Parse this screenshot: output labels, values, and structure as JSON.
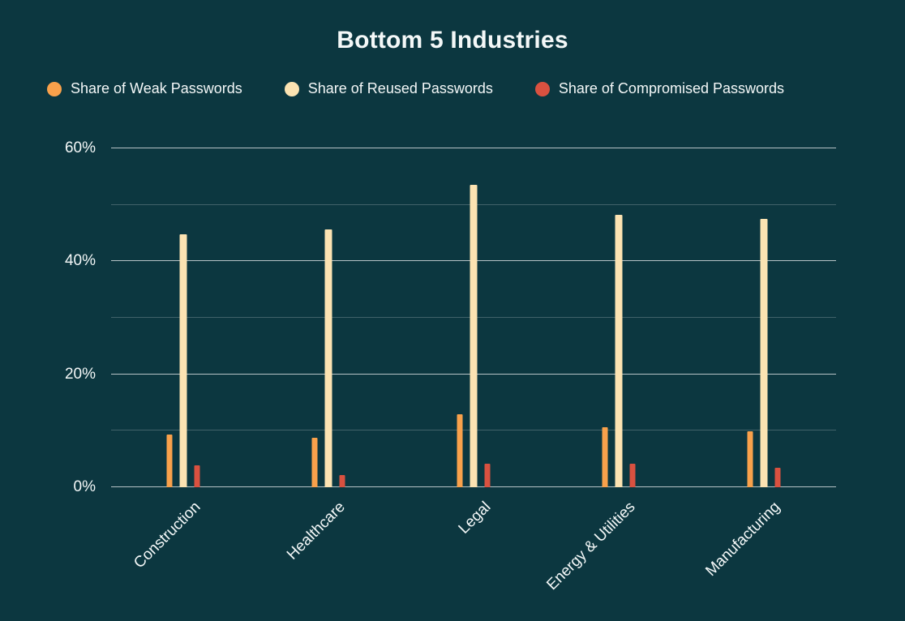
{
  "colors": {
    "background": "#0C3740",
    "text": "#F4F8F8",
    "grid_major": "rgba(255,255,255,0.70)",
    "grid_minor": "rgba(255,255,255,0.22)"
  },
  "chart_data": {
    "type": "bar",
    "title": "Bottom 5 Industries",
    "categories": [
      "Construction",
      "Healthcare",
      "Legal",
      "Energy & Utilities",
      "Manufacturing"
    ],
    "series": [
      {
        "name": "Share of Weak Passwords",
        "color": "#F9A14B",
        "values": [
          9.4,
          8.8,
          12.9,
          10.6,
          9.9
        ]
      },
      {
        "name": "Share of Reused Passwords",
        "color": "#FCE3B2",
        "values": [
          44.8,
          45.7,
          53.5,
          48.2,
          47.5
        ]
      },
      {
        "name": "Share of Compromised Passwords",
        "color": "#D95140",
        "values": [
          3.9,
          2.2,
          4.1,
          4.1,
          3.4
        ]
      }
    ],
    "xlabel": "",
    "ylabel": "",
    "ylim": [
      0,
      60
    ],
    "grid_step": 10,
    "yticks_labeled": [
      0,
      20,
      40,
      60
    ],
    "ytick_labels": [
      "0%",
      "20%",
      "40%",
      "60%"
    ],
    "tick_format": "percent",
    "grid": true,
    "legend_position": "top-left",
    "bar_orientation": "vertical",
    "x_label_rotation_deg": 45
  }
}
